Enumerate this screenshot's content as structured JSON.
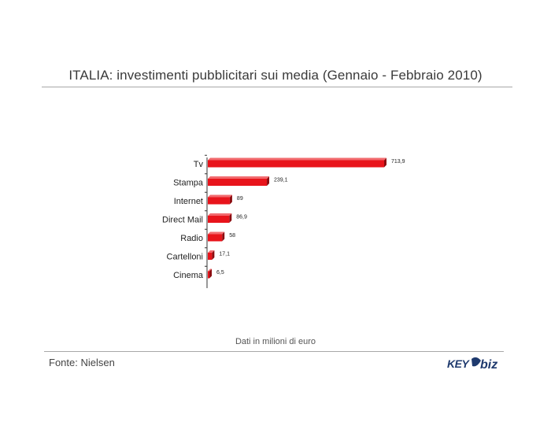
{
  "header": {
    "title": "ITALIA: investimenti pubblicitari sui media (Gennaio - Febbraio 2010)"
  },
  "chart_data": {
    "type": "bar",
    "orientation": "horizontal",
    "title": "ITALIA: investimenti pubblicitari sui media (Gennaio - Febbraio 2010)",
    "xlabel": "",
    "ylabel": "",
    "categories": [
      "Tv",
      "Stampa",
      "Internet",
      "Direct Mail",
      "Radio",
      "Cartelloni",
      "Cinema"
    ],
    "values": [
      713.9,
      239.1,
      89,
      86.9,
      58,
      17.1,
      6.5
    ],
    "value_labels": [
      "713,9",
      "239,1",
      "89",
      "86,9",
      "58",
      "17,1",
      "6,5"
    ],
    "xlim": [
      0,
      800
    ],
    "grid": false,
    "bar_color": "#e8141b",
    "bar_shade_color": "#8c0b0f"
  },
  "footer": {
    "note": "Dati in milioni di euro",
    "source": "Fonte: Nielsen",
    "logo_text": "KEY4biz"
  },
  "colors": {
    "text": "#3a3a3a",
    "rule": "#a8a8a8",
    "logo": "#1f3a6e"
  }
}
